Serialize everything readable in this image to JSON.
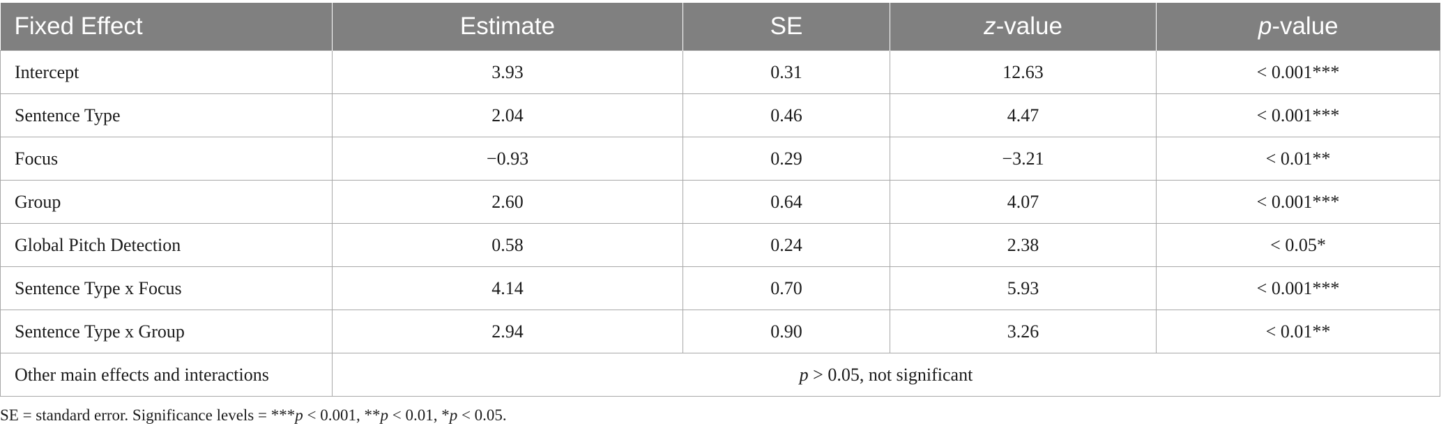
{
  "header": {
    "col0": "Fixed Effect",
    "col1": "Estimate",
    "col2": "SE",
    "col3_italic": "z",
    "col3_rest": "-value",
    "col4_italic": "p",
    "col4_rest": "-value"
  },
  "rows": [
    {
      "effect": "Intercept",
      "estimate": "3.93",
      "se": "0.31",
      "z": "12.63",
      "p": "< 0.001***"
    },
    {
      "effect": "Sentence Type",
      "estimate": "2.04",
      "se": "0.46",
      "z": "4.47",
      "p": "< 0.001***"
    },
    {
      "effect": "Focus",
      "estimate": "−0.93",
      "se": "0.29",
      "z": "−3.21",
      "p": "< 0.01**"
    },
    {
      "effect": "Group",
      "estimate": "2.60",
      "se": "0.64",
      "z": "4.07",
      "p": "< 0.001***"
    },
    {
      "effect": "Global Pitch Detection",
      "estimate": "0.58",
      "se": "0.24",
      "z": "2.38",
      "p": "< 0.05*"
    },
    {
      "effect": "Sentence Type x Focus",
      "estimate": "4.14",
      "se": "0.70",
      "z": "5.93",
      "p": "< 0.001***"
    },
    {
      "effect": "Sentence Type x Group",
      "estimate": "2.94",
      "se": "0.90",
      "z": "3.26",
      "p": "< 0.01**"
    }
  ],
  "last_row": {
    "effect": "Other main effects and interactions",
    "merged_italic": "p",
    "merged_rest": " > 0.05, not significant"
  },
  "footnote": {
    "part1": "SE = standard error. Significance levels = ***",
    "p1": "p",
    "part2": " < 0.001, **",
    "p2": "p",
    "part3": " < 0.01, *",
    "p3": "p",
    "part4": " < 0.05."
  }
}
